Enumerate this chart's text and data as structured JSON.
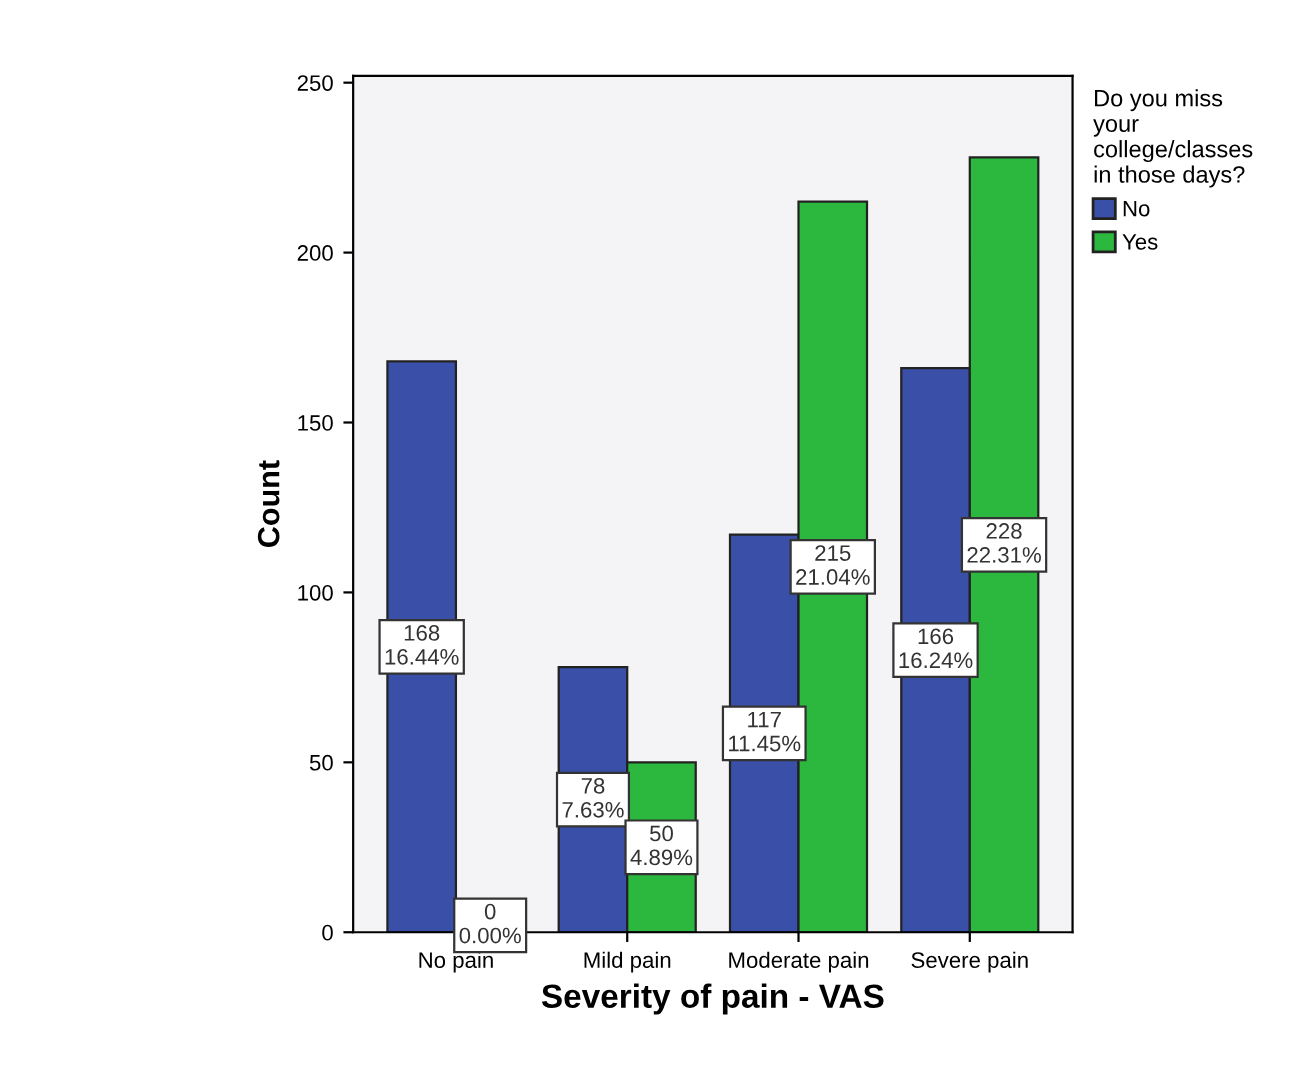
{
  "chart_data": {
    "type": "bar",
    "xlabel": "Severity of pain - VAS",
    "ylabel": "Count",
    "legend_title": "Do you miss\nyour\ncollege/classes\nin those days?",
    "categories": [
      "No pain",
      "Mild pain",
      "Moderate pain",
      "Severe pain"
    ],
    "series": [
      {
        "name": "No",
        "color": "#3a50a8",
        "values": [
          168,
          78,
          117,
          166
        ],
        "value_labels": [
          "168\n16.44%",
          "78\n7.63%",
          "117\n11.45%",
          "166\n16.24%"
        ]
      },
      {
        "name": "Yes",
        "color": "#2cb83e",
        "values": [
          0,
          50,
          215,
          228
        ],
        "value_labels": [
          "0\n0.00%",
          "50\n4.89%",
          "215\n21.04%",
          "228\n22.31%"
        ]
      }
    ],
    "ylim": [
      0,
      252
    ],
    "yticks": [
      0,
      50,
      100,
      150,
      200,
      250
    ],
    "grid": false,
    "legend": "top right"
  }
}
